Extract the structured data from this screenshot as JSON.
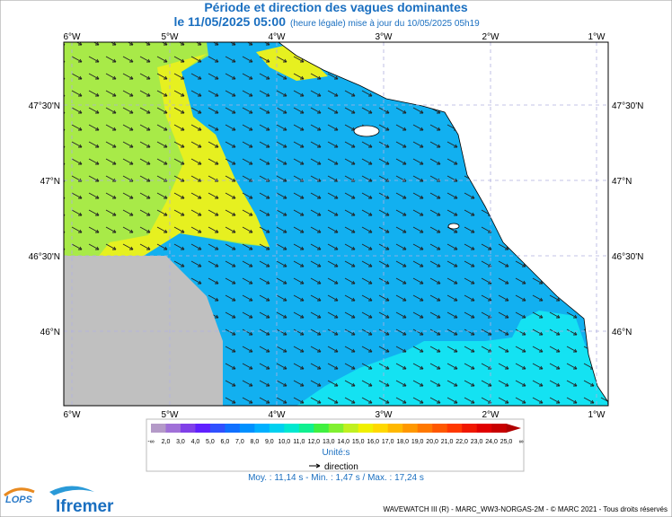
{
  "header": {
    "title": "Période et direction des vagues dominantes",
    "date": "le 11/05/2025 05:00",
    "update_note": "(heure légale) mise à jour du 10/05/2025 05h19"
  },
  "map": {
    "lon_labels": [
      "6°W",
      "5°W",
      "4°W",
      "3°W",
      "2°W",
      "1°W"
    ],
    "lat_labels": [
      "47°30'N",
      "47°N",
      "46°30'N",
      "46°N"
    ]
  },
  "colorbar": {
    "labels": [
      "-∞",
      "2,0",
      "3,0",
      "4,0",
      "5,0",
      "6,0",
      "7,0",
      "8,0",
      "9,0",
      "10,0",
      "11,0",
      "12,0",
      "13,0",
      "14,0",
      "15,0",
      "16,0",
      "17,0",
      "18,0",
      "19,0",
      "20,0",
      "21,0",
      "22,0",
      "23,0",
      "24,0",
      "25,0",
      "∞"
    ],
    "colors": [
      "#b49ac8",
      "#a070d8",
      "#8040e8",
      "#6020ff",
      "#3050ff",
      "#1070ff",
      "#0090ff",
      "#00b0ff",
      "#00d0f0",
      "#00e8d0",
      "#10f090",
      "#40f040",
      "#80f030",
      "#c0f020",
      "#f0f000",
      "#ffd800",
      "#ffb800",
      "#ff9800",
      "#ff7800",
      "#ff5800",
      "#ff3800",
      "#f01800",
      "#e00000",
      "#c80000",
      "#b00000"
    ],
    "unit": "Unité:s",
    "direction": "direction"
  },
  "stats": "Moy. : 11,14 s   -   Min. : 1,47 s / Max. : 17,24 s",
  "footer": {
    "lops": "LOPS",
    "ifremer": "Ifremer",
    "credit": "WAVEWATCH III (R) - MARC_WW3-NORGAS-2M - © MARC 2021 - Tous droits réservés"
  }
}
